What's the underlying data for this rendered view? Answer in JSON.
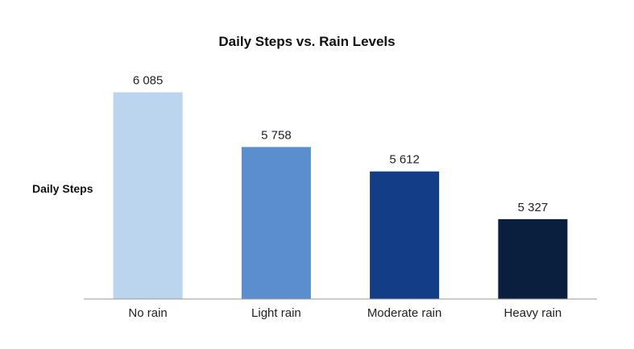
{
  "chart_data": {
    "type": "bar",
    "title": "Daily Steps vs. Rain Levels",
    "xlabel": "",
    "ylabel": "Daily Steps",
    "categories": [
      "No rain",
      "Light rain",
      "Moderate rain",
      "Heavy rain"
    ],
    "values": [
      6085,
      5758,
      5612,
      5327
    ],
    "value_labels": [
      "6 085",
      "5 758",
      "5 612",
      "5 327"
    ],
    "colors": [
      "#bcd5ee",
      "#5b8ecf",
      "#133e87",
      "#0a1f3e"
    ],
    "ylim": [
      4850,
      6150
    ],
    "grid": false,
    "legend": "none"
  }
}
